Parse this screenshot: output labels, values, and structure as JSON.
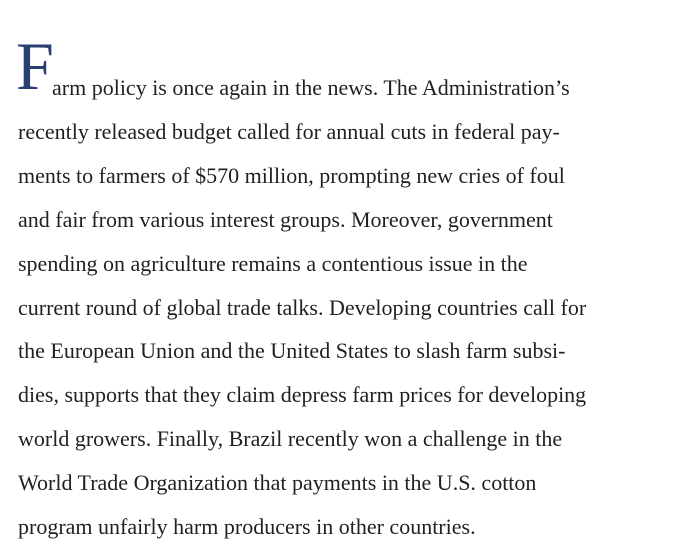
{
  "drop_cap": "F",
  "lines": [
    "arm policy is once again in the news. The Administration’s",
    "recently released budget called for annual cuts in federal pay-",
    "ments to farmers of $570 million, prompting new cries of foul",
    "and fair from various interest groups. Moreover, government",
    "spending on agriculture remains a contentious issue in the",
    "current round of global trade talks. Developing countries call for",
    "the European Union and the United States to slash farm subsi-",
    "dies, supports that they claim depress farm prices for developing",
    "world growers. Finally, Brazil recently won a challenge in the",
    "World Trade Organization that payments in the U.S. cotton",
    "program unfairly harm producers in other countries."
  ]
}
